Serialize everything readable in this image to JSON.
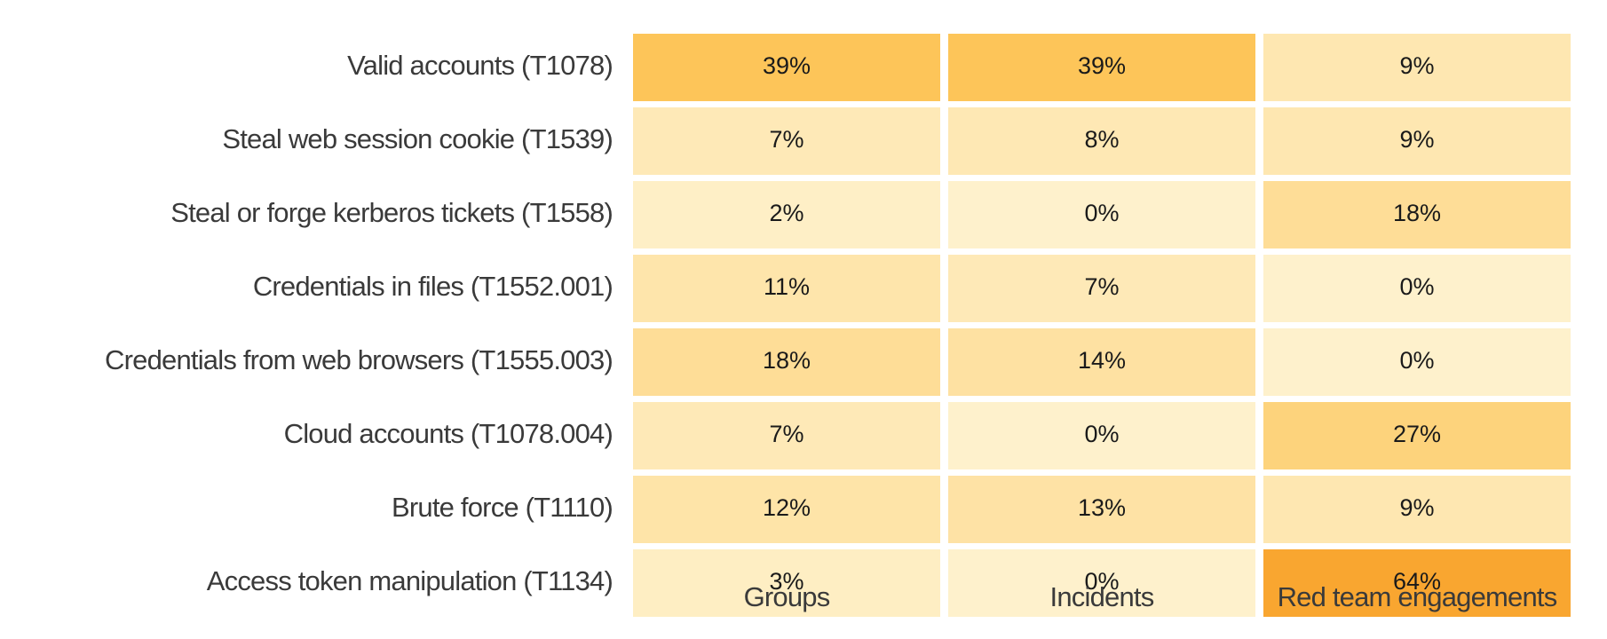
{
  "chart_data": {
    "type": "heatmap",
    "rows": [
      "Valid accounts (T1078)",
      "Steal web session cookie (T1539)",
      "Steal or forge kerberos tickets (T1558)",
      "Credentials in files (T1552.001)",
      "Credentials from web browsers (T1555.003)",
      "Cloud accounts (T1078.004)",
      "Brute force (T1110)",
      "Access token manipulation (T1134)"
    ],
    "columns": [
      "Groups",
      "Incidents",
      "Red team engagements"
    ],
    "values": [
      [
        39,
        39,
        9
      ],
      [
        7,
        8,
        9
      ],
      [
        2,
        0,
        18
      ],
      [
        11,
        7,
        0
      ],
      [
        18,
        14,
        0
      ],
      [
        7,
        0,
        27
      ],
      [
        12,
        13,
        9
      ],
      [
        3,
        0,
        64
      ]
    ],
    "value_suffix": "%",
    "color_scale": {
      "low": "#fef1cc",
      "mid": "#fdc65a",
      "high": "#f9a630"
    }
  }
}
